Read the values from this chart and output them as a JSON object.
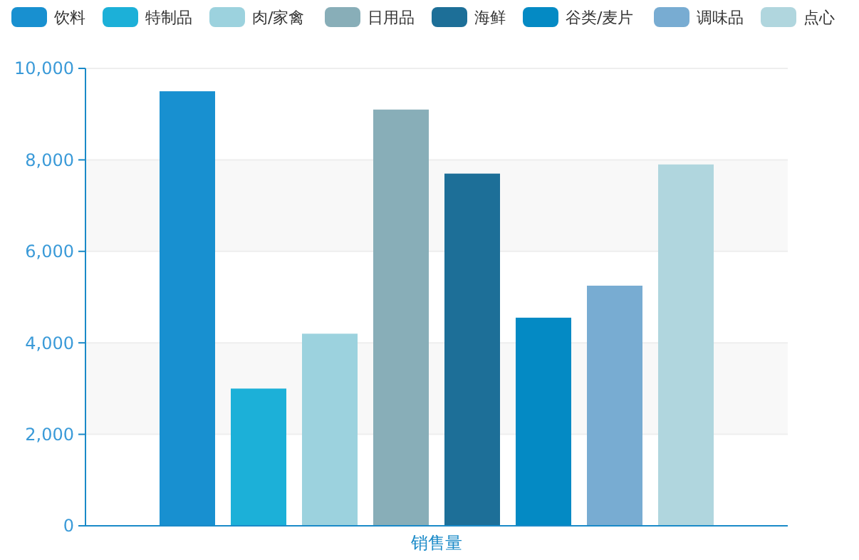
{
  "chart_data": {
    "type": "bar",
    "categories": [
      "销售量"
    ],
    "series": [
      {
        "name": "饮料",
        "color": "#1890d0",
        "values": [
          9500
        ]
      },
      {
        "name": "特制品",
        "color": "#1cb0d8",
        "values": [
          3000
        ]
      },
      {
        "name": "肉/家禽",
        "color": "#9cd2de",
        "values": [
          4200
        ]
      },
      {
        "name": "日用品",
        "color": "#88aeb8",
        "values": [
          9100
        ]
      },
      {
        "name": "海鲜",
        "color": "#1d6f98",
        "values": [
          7700
        ]
      },
      {
        "name": "谷类/麦片",
        "color": "#048ac4",
        "values": [
          4550
        ]
      },
      {
        "name": "调味品",
        "color": "#78acd2",
        "values": [
          5250
        ]
      },
      {
        "name": "点心",
        "color": "#b0d6de",
        "values": [
          7900
        ]
      }
    ],
    "ylim": [
      0,
      10000
    ],
    "yticks": [
      {
        "value": 0,
        "label": "0"
      },
      {
        "value": 2000,
        "label": "2,000"
      },
      {
        "value": 4000,
        "label": "4,000"
      },
      {
        "value": 6000,
        "label": "6,000"
      },
      {
        "value": 8000,
        "label": "8,000"
      },
      {
        "value": 10000,
        "label": "10,000"
      }
    ],
    "grid": "y",
    "legend": "top"
  }
}
